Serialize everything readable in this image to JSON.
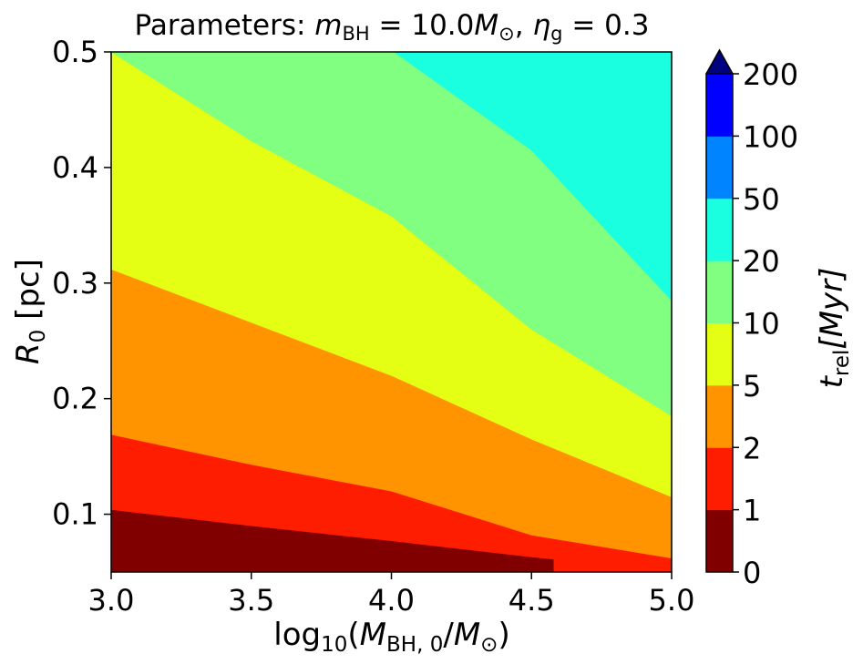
{
  "chart_data": {
    "type": "heatmap",
    "title_parts": {
      "prefix": "Parameters: ",
      "var1": "m",
      "var1_sub": "BH",
      "eq1": " = 10.0",
      "unit1": "M",
      "unit1_sub": "⊙",
      "sep": ", ",
      "var2": "η",
      "var2_sub": "g",
      "eq2": " = 0.3"
    },
    "xlabel_parts": {
      "log": "log",
      "log_sub": "10",
      "open": "(",
      "num": "M",
      "num_sub": "BH, 0",
      "slash": "/",
      "den": "M",
      "den_sub": "⊙",
      "close": ")"
    },
    "ylabel_parts": {
      "var": "R",
      "var_sub": "0",
      "unit": " [pc]"
    },
    "colorbar_label_parts": {
      "var": "t",
      "var_sub": "rel",
      "unit": "[Myr]"
    },
    "x_range": [
      3.0,
      5.0
    ],
    "y_range": [
      0.05,
      0.5
    ],
    "x_ticks": [
      3.0,
      3.5,
      4.0,
      4.5,
      5.0
    ],
    "x_tick_labels": [
      "3.0",
      "3.5",
      "4.0",
      "4.5",
      "5.0"
    ],
    "y_ticks": [
      0.1,
      0.2,
      0.3,
      0.4,
      0.5
    ],
    "y_tick_labels": [
      "0.1",
      "0.2",
      "0.3",
      "0.4",
      "0.5"
    ],
    "levels": [
      0,
      1,
      2,
      5,
      10,
      20,
      50,
      100,
      200
    ],
    "level_labels": [
      "0",
      "1",
      "2",
      "5",
      "10",
      "20",
      "50",
      "100",
      "200"
    ],
    "level_colors": [
      "#800000",
      "#ff1d00",
      "#ff9400",
      "#e4ff13",
      "#80ff80",
      "#19ffe0",
      "#0084ff",
      "#0000ff"
    ],
    "extend_color": "#000080",
    "colorbar_extend": "max",
    "boundaries": [
      {
        "upper_level": 1,
        "points": [
          [
            3.0,
            0.104
          ],
          [
            3.5,
            0.09
          ],
          [
            4.0,
            0.077
          ],
          [
            4.5,
            0.063
          ],
          [
            4.58,
            0.061
          ]
        ]
      },
      {
        "upper_level": 2,
        "points": [
          [
            3.0,
            0.169
          ],
          [
            3.5,
            0.143
          ],
          [
            4.0,
            0.12
          ],
          [
            4.5,
            0.082
          ],
          [
            5.0,
            0.062
          ]
        ]
      },
      {
        "upper_level": 5,
        "points": [
          [
            3.0,
            0.312
          ],
          [
            3.5,
            0.266
          ],
          [
            4.0,
            0.22
          ],
          [
            4.5,
            0.165
          ],
          [
            5.0,
            0.115
          ]
        ]
      },
      {
        "upper_level": 10,
        "points": [
          [
            3.0,
            0.5
          ],
          [
            3.5,
            0.423
          ],
          [
            4.0,
            0.358
          ],
          [
            4.5,
            0.26
          ],
          [
            5.0,
            0.185
          ]
        ]
      },
      {
        "upper_level": 20,
        "points": [
          [
            4.01,
            0.5
          ],
          [
            4.5,
            0.415
          ],
          [
            5.0,
            0.285
          ]
        ]
      }
    ]
  }
}
